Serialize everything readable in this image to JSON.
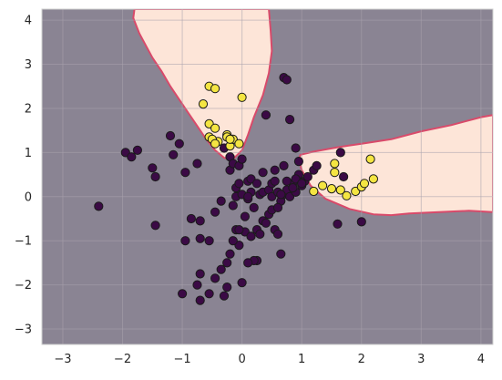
{
  "chart_data": {
    "type": "scatter",
    "title": "",
    "xlabel": "",
    "ylabel": "",
    "xlim": [
      -3.35,
      4.2
    ],
    "ylim": [
      -3.35,
      4.25
    ],
    "xticks": [
      -3,
      -2,
      -1,
      0,
      1,
      2,
      3,
      4
    ],
    "yticks": [
      -3,
      -2,
      -1,
      0,
      1,
      2,
      3,
      4
    ],
    "xtick_labels": [
      "−3",
      "−2",
      "−1",
      "0",
      "1",
      "2",
      "3",
      "4"
    ],
    "ytick_labels": [
      "−3",
      "−2",
      "−1",
      "0",
      "1",
      "2",
      "3",
      "4"
    ],
    "grid": true,
    "colors": {
      "background_region": "#8a8493",
      "positive_region": "#fde5d8",
      "boundary": "#d94a6a",
      "class_0": "#3b0a45",
      "class_1": "#f4e542",
      "marker_edge": "#1a1a1a",
      "grid": "#a9a2ad",
      "axes_edge": "#cfcfcf"
    },
    "regions": [
      {
        "label": "class_1_region_upper",
        "polygon": [
          [
            -1.8,
            4.25
          ],
          [
            -1.82,
            4.05
          ],
          [
            -1.72,
            3.7
          ],
          [
            -1.62,
            3.45
          ],
          [
            -1.5,
            3.15
          ],
          [
            -1.35,
            2.85
          ],
          [
            -1.2,
            2.5
          ],
          [
            -1.05,
            2.2
          ],
          [
            -0.9,
            1.9
          ],
          [
            -0.75,
            1.6
          ],
          [
            -0.6,
            1.3
          ],
          [
            -0.45,
            1.05
          ],
          [
            -0.3,
            0.88
          ],
          [
            -0.15,
            0.85
          ],
          [
            0.0,
            1.05
          ],
          [
            0.1,
            1.4
          ],
          [
            0.2,
            1.8
          ],
          [
            0.35,
            2.3
          ],
          [
            0.45,
            2.8
          ],
          [
            0.5,
            3.3
          ],
          [
            0.48,
            3.75
          ],
          [
            0.45,
            4.25
          ]
        ]
      },
      {
        "label": "class_1_region_right",
        "polygon": [
          [
            0.98,
            0.95
          ],
          [
            1.2,
            1.02
          ],
          [
            1.6,
            1.12
          ],
          [
            2.0,
            1.2
          ],
          [
            2.5,
            1.3
          ],
          [
            3.0,
            1.48
          ],
          [
            3.5,
            1.62
          ],
          [
            4.0,
            1.8
          ],
          [
            4.2,
            1.85
          ],
          [
            4.2,
            -0.35
          ],
          [
            3.8,
            -0.32
          ],
          [
            3.3,
            -0.35
          ],
          [
            2.8,
            -0.38
          ],
          [
            2.5,
            -0.42
          ],
          [
            2.2,
            -0.4
          ],
          [
            1.8,
            -0.28
          ],
          [
            1.4,
            -0.05
          ],
          [
            1.15,
            0.25
          ],
          [
            1.0,
            0.6
          ],
          [
            0.95,
            0.85
          ]
        ]
      }
    ],
    "series": [
      {
        "class": 0,
        "x": [
          -2.4,
          -1.95,
          -1.85,
          -1.75,
          -1.5,
          -1.45,
          -1.45,
          -1.2,
          -1.15,
          -1.05,
          -1.0,
          -0.95,
          -0.75,
          -0.7,
          -0.7,
          -0.55,
          -0.45,
          -0.35,
          -0.3,
          -0.2,
          -0.2,
          -0.15,
          -0.15,
          -0.1,
          -0.1,
          -0.05,
          -0.05,
          0.0,
          0.0,
          0.05,
          0.1,
          0.1,
          0.15,
          0.15,
          0.2,
          0.25,
          0.3,
          0.35,
          0.35,
          0.45,
          0.5,
          0.5,
          0.55,
          0.6,
          0.65,
          0.7,
          0.75,
          0.8,
          0.85,
          0.9,
          0.95,
          1.0,
          1.05,
          1.1,
          1.2,
          1.25,
          0.7,
          0.75,
          0.9,
          0.95,
          0.45,
          0.5,
          0.35,
          0.4,
          0.55,
          0.6,
          0.65,
          0.25,
          0.3,
          0.05,
          0.15,
          -0.05,
          -0.1,
          -0.2,
          -0.25,
          -0.35,
          -0.45,
          -0.55,
          -0.7,
          -0.7,
          -0.75,
          -0.95,
          -0.85,
          0.8,
          0.75,
          0.7,
          0.4,
          0.25,
          1.65,
          1.7,
          1.6,
          2.0,
          0.85,
          0.9,
          1.0,
          0.2,
          0.55,
          0.1,
          -0.15,
          -0.25,
          -0.3,
          0.0,
          -0.05,
          0.1,
          0.6,
          0.65
        ],
        "y": [
          -0.22,
          1.0,
          0.9,
          1.05,
          0.65,
          0.45,
          -0.65,
          1.38,
          0.95,
          1.2,
          -2.2,
          0.55,
          0.75,
          -0.55,
          -0.95,
          -1.0,
          -0.35,
          -0.1,
          1.1,
          0.9,
          0.6,
          -0.2,
          0.75,
          0.0,
          0.2,
          0.7,
          0.3,
          0.85,
          0.05,
          -0.45,
          0.35,
          -0.05,
          0.1,
          0.4,
          -0.25,
          0.3,
          0.05,
          0.1,
          0.55,
          0.15,
          0.0,
          0.3,
          0.35,
          0.1,
          -0.1,
          0.05,
          0.15,
          0.0,
          0.3,
          0.1,
          0.5,
          0.25,
          0.35,
          0.45,
          0.6,
          0.7,
          2.7,
          2.65,
          1.1,
          0.8,
          -0.4,
          -0.3,
          -0.55,
          -0.6,
          -0.75,
          -0.85,
          -1.3,
          -0.75,
          -0.85,
          -0.8,
          -0.9,
          -1.1,
          -0.75,
          -1.3,
          -1.5,
          -1.65,
          -1.85,
          -2.2,
          -1.75,
          -2.35,
          -2.0,
          -1.0,
          -0.5,
          1.75,
          0.35,
          0.7,
          1.85,
          -1.45,
          1.0,
          0.45,
          -0.62,
          -0.57,
          0.2,
          0.4,
          0.3,
          -1.45,
          0.6,
          0.0,
          -1.0,
          -2.05,
          -2.25,
          -1.95,
          -0.75,
          -1.5,
          -0.25,
          0.05
        ]
      },
      {
        "class": 1,
        "x": [
          -0.55,
          -0.45,
          -0.65,
          -0.55,
          -0.45,
          -0.4,
          -0.25,
          -0.25,
          -0.2,
          -0.15,
          -0.05,
          0.0,
          -0.55,
          -0.5,
          -0.45,
          -0.25,
          -0.2,
          1.2,
          1.35,
          1.5,
          1.55,
          1.65,
          1.75,
          1.9,
          2.0,
          2.05,
          2.15,
          2.2,
          1.55
        ],
        "y": [
          2.5,
          2.45,
          2.1,
          1.65,
          1.55,
          1.25,
          1.35,
          1.4,
          1.15,
          1.3,
          1.2,
          2.25,
          1.35,
          1.3,
          1.2,
          1.35,
          1.3,
          0.12,
          0.25,
          0.18,
          0.55,
          0.15,
          0.02,
          0.12,
          0.22,
          0.3,
          0.85,
          0.4,
          0.75
        ]
      }
    ]
  }
}
